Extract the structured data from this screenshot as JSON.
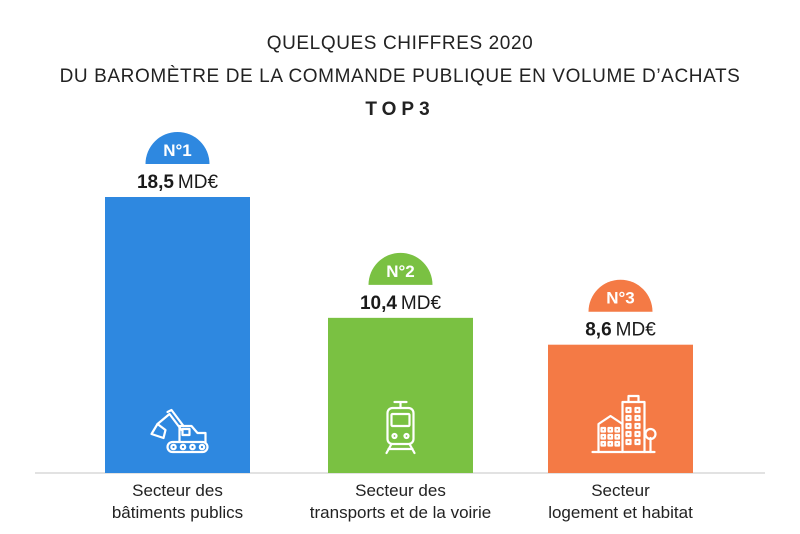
{
  "colors": {
    "blue": "#2e88e0",
    "green": "#7ac142",
    "orange": "#f47a45",
    "axis": "#d8d8d8"
  },
  "header": {
    "line1": "QUELQUES CHIFFRES 2020",
    "line2": "DU BAROMÈTRE DE LA COMMANDE PUBLIQUE EN VOLUME D’ACHATS",
    "line3": "TOP3"
  },
  "chart_data": {
    "type": "bar",
    "title": "QUELQUES CHIFFRES 2020 — DU BAROMÈTRE DE LA COMMANDE PUBLIQUE EN VOLUME D’ACHATS — TOP3",
    "unit": "MD€",
    "ylim": [
      0,
      20
    ],
    "categories": [
      [
        "Secteur des",
        "bâtiments publics"
      ],
      [
        "Secteur des",
        "transports et de la voirie"
      ],
      [
        "Secteur",
        "logement et habitat"
      ]
    ],
    "values": [
      18.5,
      10.4,
      8.6
    ],
    "value_labels": [
      "18,5",
      "10,4",
      "8,6"
    ],
    "ranks": [
      "N°1",
      "N°2",
      "N°3"
    ],
    "icons": [
      "excavator-icon",
      "tram-icon",
      "buildings-icon"
    ],
    "bar_colors": [
      "#2e88e0",
      "#7ac142",
      "#f47a45"
    ]
  }
}
